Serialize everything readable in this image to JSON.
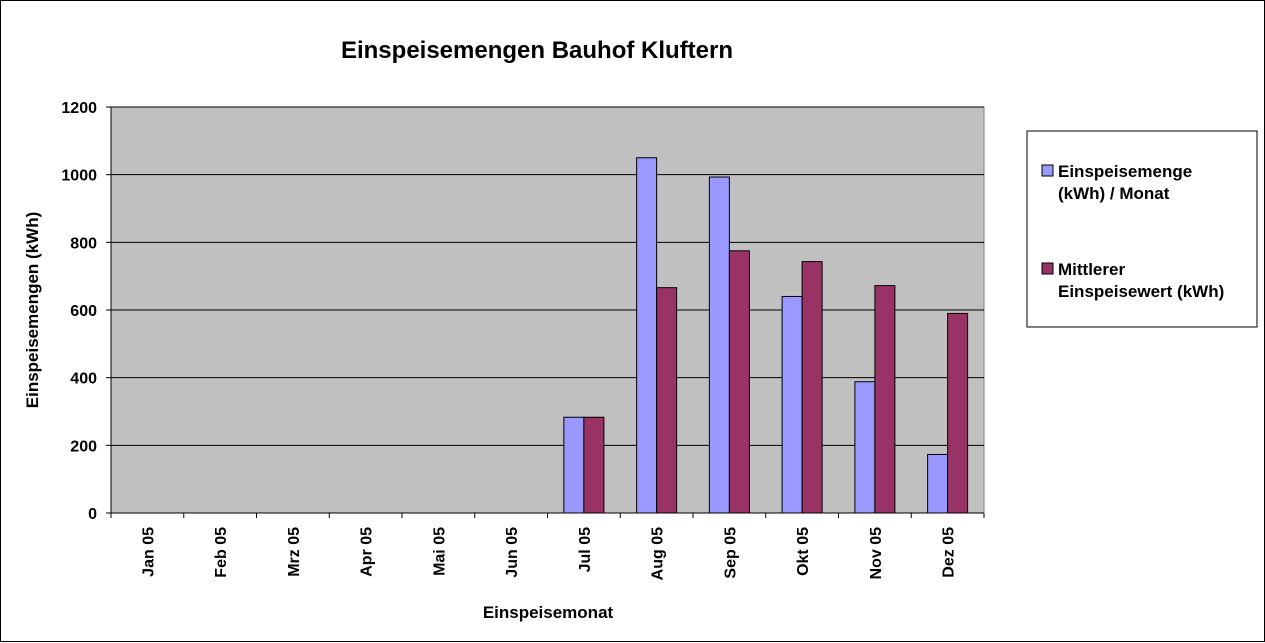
{
  "chart_data": {
    "type": "bar",
    "title": "Einspeisemengen Bauhof Kluftern",
    "xlabel": "Einspeisemonat",
    "ylabel": "Einspeisemengen (kWh)",
    "ylim": [
      0,
      1200
    ],
    "yticks": [
      0,
      200,
      400,
      600,
      800,
      1000,
      1200
    ],
    "grid": true,
    "legend_position": "right",
    "plot_background": "#c0c0c0",
    "categories": [
      "Jan 05",
      "Feb 05",
      "Mrz 05",
      "Apr 05",
      "Mai 05",
      "Jun 05",
      "Jul 05",
      "Aug 05",
      "Sep 05",
      "Okt 05",
      "Nov 05",
      "Dez 05"
    ],
    "series": [
      {
        "name": "Einspeisemenge (kWh) / Monat",
        "legend_lines": [
          "Einspeisemenge",
          "(kWh) / Monat"
        ],
        "color": "#9999ff",
        "values": [
          null,
          null,
          null,
          null,
          null,
          null,
          283,
          1050,
          993,
          640,
          388,
          173
        ]
      },
      {
        "name": "Mittlerer Einspeisewert (kWh)",
        "legend_lines": [
          "Mittlerer",
          "Einspeisewert (kWh)"
        ],
        "color": "#993366",
        "values": [
          null,
          null,
          null,
          null,
          null,
          null,
          283,
          666,
          775,
          743,
          672,
          590
        ]
      }
    ]
  }
}
